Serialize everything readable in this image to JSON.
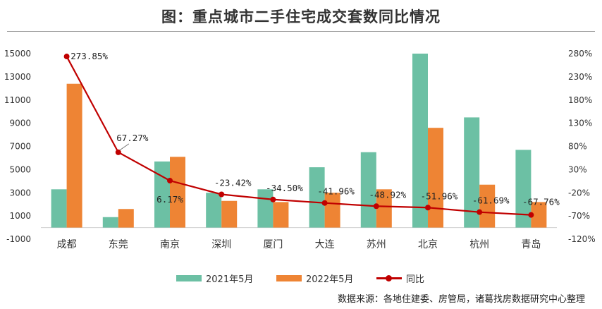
{
  "title": "图：重点城市二手住宅成交套数同比情况",
  "source": "数据来源：各地住建委、房管局，诸葛找房数据研究中心整理",
  "colors": {
    "series_2021": "#6cc0a4",
    "series_2022": "#ee8434",
    "yoy": "#c00000"
  },
  "chart_data": {
    "type": "bar",
    "categories": [
      "成都",
      "东莞",
      "南京",
      "深圳",
      "厦门",
      "大连",
      "苏州",
      "北京",
      "杭州",
      "青岛"
    ],
    "series": [
      {
        "name": "2021年5月",
        "type": "bar",
        "axis": "left",
        "values": [
          3300,
          900,
          5700,
          3000,
          3300,
          5200,
          6500,
          15000,
          9500,
          6700
        ]
      },
      {
        "name": "2022年5月",
        "type": "bar",
        "axis": "left",
        "values": [
          12400,
          1600,
          6100,
          2300,
          2200,
          3000,
          3300,
          8600,
          3700,
          2200
        ]
      },
      {
        "name": "同比",
        "type": "line",
        "axis": "right",
        "values": [
          273.85,
          67.27,
          6.17,
          -23.42,
          -34.5,
          -41.96,
          -48.92,
          -51.96,
          -61.69,
          -67.76
        ],
        "labels": [
          "273.85%",
          "67.27%",
          "6.17%",
          "-23.42%",
          "-34.50%",
          "-41.96%",
          "-48.92%",
          "-51.96%",
          "-61.69%",
          "-67.76%"
        ]
      }
    ],
    "y_left": {
      "min": -1000,
      "max": 15000,
      "ticks": [
        "-1000",
        "1000",
        "3000",
        "5000",
        "7000",
        "9000",
        "11000",
        "13000",
        "15000"
      ]
    },
    "y_right": {
      "min": -120,
      "max": 280,
      "ticks": [
        "-120%",
        "-70%",
        "-20%",
        "30%",
        "80%",
        "130%",
        "180%",
        "230%",
        "280%"
      ]
    },
    "legend": "bottom",
    "grid": false
  }
}
